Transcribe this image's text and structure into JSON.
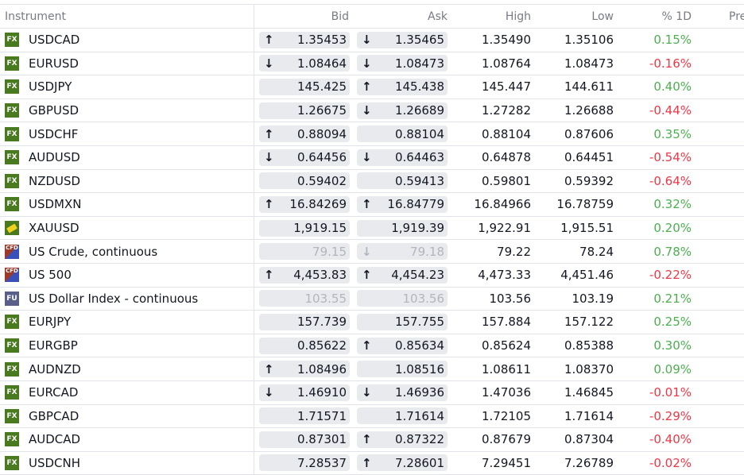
{
  "columns": {
    "instrument": "Instrument",
    "bid": "Bid",
    "ask": "Ask",
    "high": "High",
    "low": "Low",
    "pct": "% 1D",
    "pre": "Pre"
  },
  "colors": {
    "up": "#4caf50",
    "down": "#f23645",
    "fx_icon": "#4a7a20"
  },
  "rows": [
    {
      "name": "USDCAD",
      "icon": "FX",
      "pip": true,
      "bid": "1.35453",
      "bid_arrow": "up",
      "ask": "1.35465",
      "ask_arrow": "down",
      "high": "1.35490",
      "low": "1.35106",
      "pct": "0.15%"
    },
    {
      "name": "EURUSD",
      "icon": "FX",
      "pip": true,
      "bid": "1.08464",
      "bid_arrow": "down",
      "ask": "1.08473",
      "ask_arrow": "down",
      "high": "1.08764",
      "low": "1.08473",
      "pct": "-0.16%"
    },
    {
      "name": "USDJPY",
      "icon": "FX",
      "pip": true,
      "bid": "145.425",
      "bid_arrow": "",
      "ask": "145.438",
      "ask_arrow": "up",
      "high": "145.447",
      "low": "144.611",
      "pct": "0.40%"
    },
    {
      "name": "GBPUSD",
      "icon": "FX",
      "pip": true,
      "bid": "1.26675",
      "bid_arrow": "",
      "ask": "1.26689",
      "ask_arrow": "down",
      "high": "1.27282",
      "low": "1.26688",
      "pct": "-0.44%"
    },
    {
      "name": "USDCHF",
      "icon": "FX",
      "pip": true,
      "bid": "0.88094",
      "bid_arrow": "up",
      "ask": "0.88104",
      "ask_arrow": "",
      "high": "0.88104",
      "low": "0.87606",
      "pct": "0.35%"
    },
    {
      "name": "AUDUSD",
      "icon": "FX",
      "pip": true,
      "bid": "0.64456",
      "bid_arrow": "down",
      "ask": "0.64463",
      "ask_arrow": "down",
      "high": "0.64878",
      "low": "0.64451",
      "pct": "-0.54%"
    },
    {
      "name": "NZDUSD",
      "icon": "FX",
      "pip": true,
      "bid": "0.59402",
      "bid_arrow": "",
      "ask": "0.59413",
      "ask_arrow": "",
      "high": "0.59801",
      "low": "0.59392",
      "pct": "-0.64%"
    },
    {
      "name": "USDMXN",
      "icon": "FX",
      "pip": true,
      "bid": "16.84269",
      "bid_arrow": "up",
      "ask": "16.84779",
      "ask_arrow": "up",
      "high": "16.84966",
      "low": "16.78759",
      "pct": "0.32%"
    },
    {
      "name": "XAUUSD",
      "icon": "gold",
      "pip": false,
      "bid": "1,919.15",
      "bid_arrow": "",
      "ask": "1,919.39",
      "ask_arrow": "",
      "high": "1,922.91",
      "low": "1,915.51",
      "pct": "0.20%"
    },
    {
      "name": "US Crude, continuous",
      "icon": "CFD",
      "pip": false,
      "muted": true,
      "bid": "79.15",
      "bid_arrow": "",
      "ask": "79.18",
      "ask_arrow": "down",
      "high": "79.22",
      "low": "78.24",
      "pct": "0.78%"
    },
    {
      "name": "US 500",
      "icon": "CFD",
      "pip": false,
      "bid": "4,453.83",
      "bid_arrow": "up",
      "ask": "4,454.23",
      "ask_arrow": "up",
      "high": "4,473.33",
      "low": "4,451.46",
      "pct": "-0.22%"
    },
    {
      "name": "US Dollar Index - continuous",
      "icon": "FU",
      "pip": false,
      "muted": true,
      "bid": "103.55",
      "bid_arrow": "",
      "ask": "103.56",
      "ask_arrow": "",
      "high": "103.56",
      "low": "103.19",
      "pct": "0.21%"
    },
    {
      "name": "EURJPY",
      "icon": "FX",
      "pip": true,
      "bid": "157.739",
      "bid_arrow": "",
      "ask": "157.755",
      "ask_arrow": "",
      "high": "157.884",
      "low": "157.122",
      "pct": "0.25%"
    },
    {
      "name": "EURGBP",
      "icon": "FX",
      "pip": true,
      "bid": "0.85622",
      "bid_arrow": "",
      "ask": "0.85634",
      "ask_arrow": "up",
      "high": "0.85624",
      "low": "0.85388",
      "pct": "0.30%"
    },
    {
      "name": "AUDNZD",
      "icon": "FX",
      "pip": true,
      "bid": "1.08496",
      "bid_arrow": "up",
      "ask": "1.08516",
      "ask_arrow": "",
      "high": "1.08611",
      "low": "1.08370",
      "pct": "0.09%"
    },
    {
      "name": "EURCAD",
      "icon": "FX",
      "pip": true,
      "bid": "1.46910",
      "bid_arrow": "down",
      "ask": "1.46936",
      "ask_arrow": "down",
      "high": "1.47036",
      "low": "1.46845",
      "pct": "-0.01%"
    },
    {
      "name": "GBPCAD",
      "icon": "FX",
      "pip": true,
      "bid": "1.71571",
      "bid_arrow": "",
      "ask": "1.71614",
      "ask_arrow": "",
      "high": "1.72105",
      "low": "1.71614",
      "pct": "-0.29%"
    },
    {
      "name": "AUDCAD",
      "icon": "FX",
      "pip": true,
      "bid": "0.87301",
      "bid_arrow": "",
      "ask": "0.87322",
      "ask_arrow": "up",
      "high": "0.87679",
      "low": "0.87304",
      "pct": "-0.40%"
    },
    {
      "name": "USDCNH",
      "icon": "FX",
      "pip": true,
      "bid": "7.28537",
      "bid_arrow": "",
      "ask": "7.28601",
      "ask_arrow": "up",
      "high": "7.29451",
      "low": "7.26789",
      "pct": "-0.02%"
    }
  ]
}
